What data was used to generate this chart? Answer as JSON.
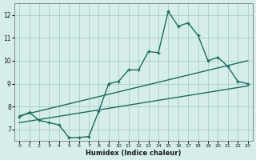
{
  "xlabel": "Humidex (Indice chaleur)",
  "background_color": "#d5eeea",
  "grid_color": "#b0d0cc",
  "line_color": "#1e6b5e",
  "xlim": [
    -0.5,
    23.5
  ],
  "ylim": [
    6.5,
    12.5
  ],
  "xticks": [
    0,
    1,
    2,
    3,
    4,
    5,
    6,
    7,
    8,
    9,
    10,
    11,
    12,
    13,
    14,
    15,
    16,
    17,
    18,
    19,
    20,
    21,
    22,
    23
  ],
  "yticks": [
    7,
    8,
    9,
    10,
    11,
    12
  ],
  "main_x": [
    0,
    1,
    2,
    3,
    4,
    5,
    6,
    7,
    8,
    9,
    10,
    11,
    12,
    13,
    14,
    15,
    16,
    17,
    18,
    19,
    20,
    21,
    22,
    23
  ],
  "main_y": [
    7.55,
    7.75,
    7.4,
    7.3,
    7.2,
    6.65,
    6.65,
    6.7,
    7.8,
    9.0,
    9.1,
    9.6,
    9.6,
    10.4,
    10.35,
    12.15,
    11.5,
    11.65,
    11.1,
    10.0,
    10.15,
    9.75,
    9.1,
    9.0
  ],
  "upper_line_x": [
    0,
    23
  ],
  "upper_line_y": [
    7.6,
    10.0
  ],
  "lower_line_x": [
    0,
    23
  ],
  "lower_line_y": [
    7.3,
    8.9
  ]
}
